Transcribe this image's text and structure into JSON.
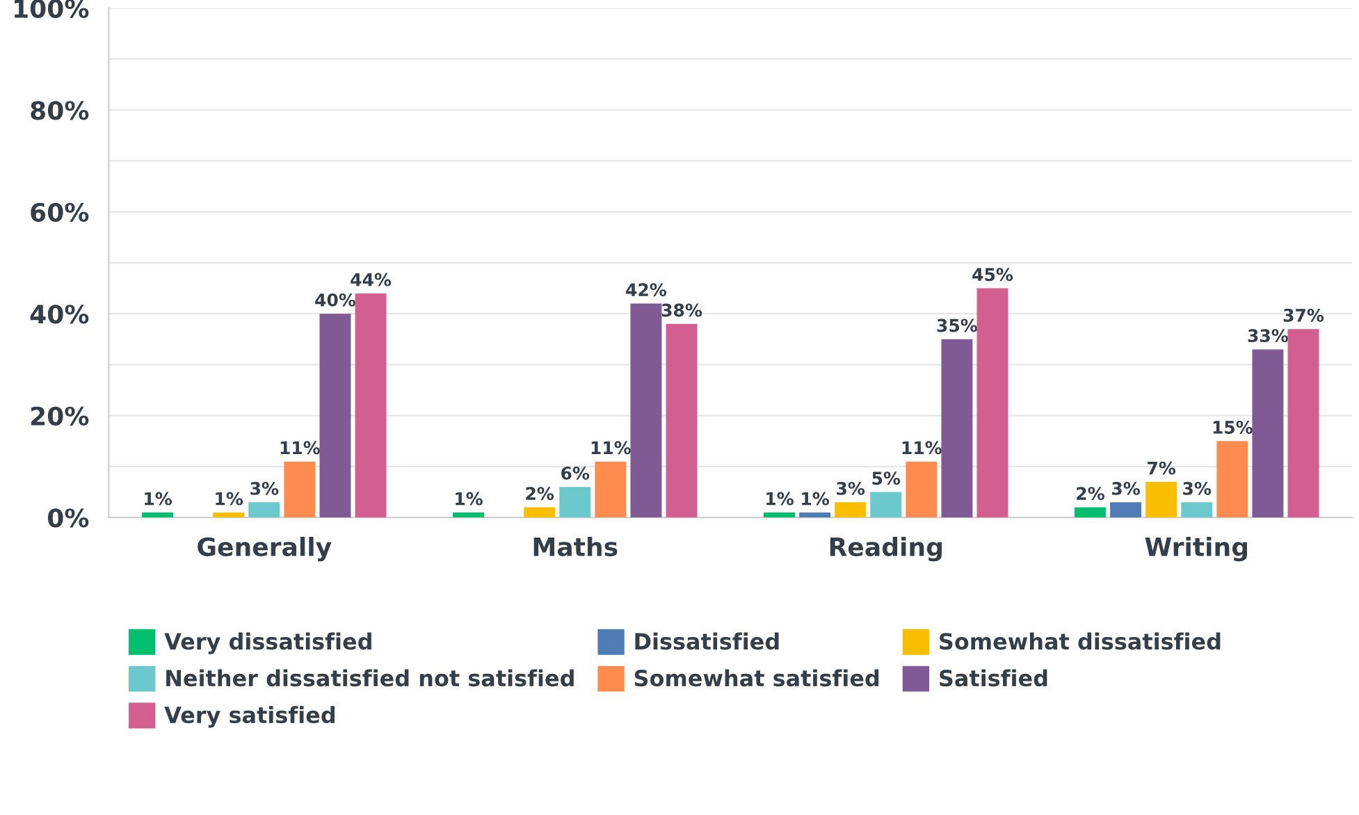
{
  "chart_data": {
    "type": "bar",
    "categories": [
      "Generally",
      "Maths",
      "Reading",
      "Writing"
    ],
    "series": [
      {
        "name": "Very dissatisfied",
        "color": "#00bf6f",
        "values": [
          1,
          1,
          1,
          2
        ],
        "value_labels": [
          "1%",
          "1%",
          "1%",
          "2%"
        ]
      },
      {
        "name": "Dissatisfied",
        "color": "#507cb6",
        "values": [
          0,
          0,
          1,
          3
        ],
        "value_labels": [
          null,
          null,
          "1%",
          "3%"
        ]
      },
      {
        "name": "Somewhat dissatisfied",
        "color": "#f9be00",
        "values": [
          1,
          2,
          3,
          7
        ],
        "value_labels": [
          "1%",
          "2%",
          "3%",
          "7%"
        ]
      },
      {
        "name": "Neither dissatisfied not satisfied",
        "color": "#6bc8cd",
        "values": [
          3,
          6,
          5,
          3
        ],
        "value_labels": [
          "3%",
          "6%",
          "5%",
          "3%"
        ]
      },
      {
        "name": "Somewhat satisfied",
        "color": "#ff8b4f",
        "values": [
          11,
          11,
          11,
          15
        ],
        "value_labels": [
          "11%",
          "11%",
          "11%",
          "15%"
        ]
      },
      {
        "name": "Satisfied",
        "color": "#7f5a94",
        "values": [
          40,
          42,
          35,
          33
        ],
        "value_labels": [
          "40%",
          "42%",
          "35%",
          "33%"
        ]
      },
      {
        "name": "Very satisfied",
        "color": "#d25f90",
        "values": [
          44,
          38,
          45,
          37
        ],
        "value_labels": [
          "44%",
          "38%",
          "45%",
          "37%"
        ]
      }
    ],
    "ylim": [
      0,
      100
    ],
    "yticks": [
      {
        "value": 0,
        "label": "0%"
      },
      {
        "value": 10,
        "label": null
      },
      {
        "value": 20,
        "label": "20%"
      },
      {
        "value": 30,
        "label": null
      },
      {
        "value": 40,
        "label": "40%"
      },
      {
        "value": 50,
        "label": null
      },
      {
        "value": 60,
        "label": "60%"
      },
      {
        "value": 70,
        "label": null
      },
      {
        "value": 80,
        "label": "80%"
      },
      {
        "value": 90,
        "label": null
      },
      {
        "value": 100,
        "label": "100%"
      }
    ],
    "grid": "y",
    "legend": "bottom"
  }
}
